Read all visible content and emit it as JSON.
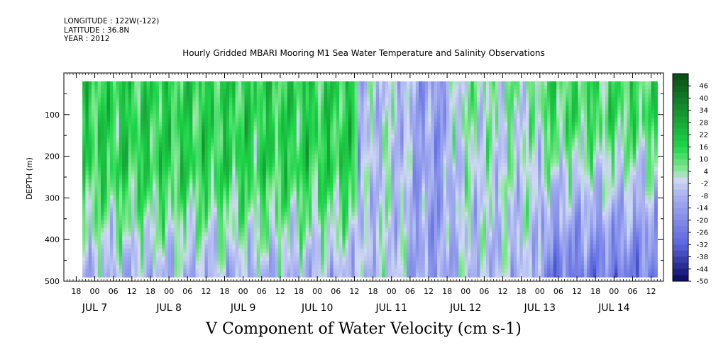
{
  "header": {
    "longitude": "LONGITUDE : 122W(-122)",
    "latitude": "LATITUDE : 36.8N",
    "year": "YEAR : 2012"
  },
  "colors": {
    "positive_dark": "#0a4a14",
    "positive_mid": "#1fd64a",
    "positive_light": "#8ee89a",
    "near_zero": "#cfd9f2",
    "negative_light": "#a9b2f0",
    "negative_mid": "#5a66e0",
    "negative_dark": "#07075e",
    "missing": "#ffffff"
  },
  "chart_data": {
    "type": "heatmap",
    "title": "Hourly Gridded MBARI Mooring M1 Sea Water Temperature and Salinity Observations",
    "xlabel": "V Component of Water Velocity (cm s-1)",
    "ylabel": "DEPTH (m)",
    "ylim": [
      500,
      0
    ],
    "y_ticks": [
      100,
      200,
      300,
      400,
      500
    ],
    "x_hour_labels": [
      "18",
      "00",
      "06",
      "12",
      "18",
      "00",
      "06",
      "12",
      "18",
      "00",
      "06",
      "12",
      "18",
      "00",
      "06",
      "12",
      "18",
      "00",
      "06",
      "12",
      "18",
      "00",
      "06",
      "12",
      "18",
      "00",
      "06",
      "12",
      "18",
      "00",
      "06",
      "12"
    ],
    "x_date_labels": [
      "JUL 7",
      "JUL 8",
      "JUL 9",
      "JUL 10",
      "JUL 11",
      "JUL 12",
      "JUL 13",
      "JUL 14"
    ],
    "x_range": [
      "2012-07-06 14:00",
      "2012-07-14 16:00"
    ],
    "data_x_range": [
      "2012-07-06 20:00",
      "2012-07-14 14:00"
    ],
    "depth_range_m": [
      20,
      490
    ],
    "colorbar": {
      "levels": [
        "46",
        "40",
        "34",
        "28",
        "22",
        "16",
        "10",
        "4",
        "-2",
        "-8",
        "-14",
        "-20",
        "-26",
        "-32",
        "-38",
        "-44",
        "-50"
      ],
      "range": [
        -50,
        52
      ],
      "step": 3
    },
    "dominant_pattern": [
      {
        "period": "2012-07-06 20:00 to 2012-07-10 12:00",
        "upper_depth_range_m": [
          20,
          250
        ],
        "sign": "positive"
      },
      {
        "period": "2012-07-06 20:00 to 2012-07-10 12:00",
        "lower_depth_range_m": [
          300,
          490
        ],
        "sign": "negative"
      },
      {
        "period": "2012-07-10 12:00 to 2012-07-11 18:00",
        "depth_range_m": [
          20,
          490
        ],
        "sign": "negative"
      },
      {
        "period": "2012-07-11 18:00 to 2012-07-13 00:00",
        "depth_range_m": [
          20,
          490
        ],
        "sign": "mixed"
      },
      {
        "period": "2012-07-13 00:00 to 2012-07-14 14:00",
        "upper_depth_range_m": [
          20,
          160
        ],
        "sign": "positive"
      },
      {
        "period": "2012-07-13 00:00 to 2012-07-14 14:00",
        "lower_depth_range_m": [
          160,
          490
        ],
        "sign": "negative"
      }
    ]
  }
}
